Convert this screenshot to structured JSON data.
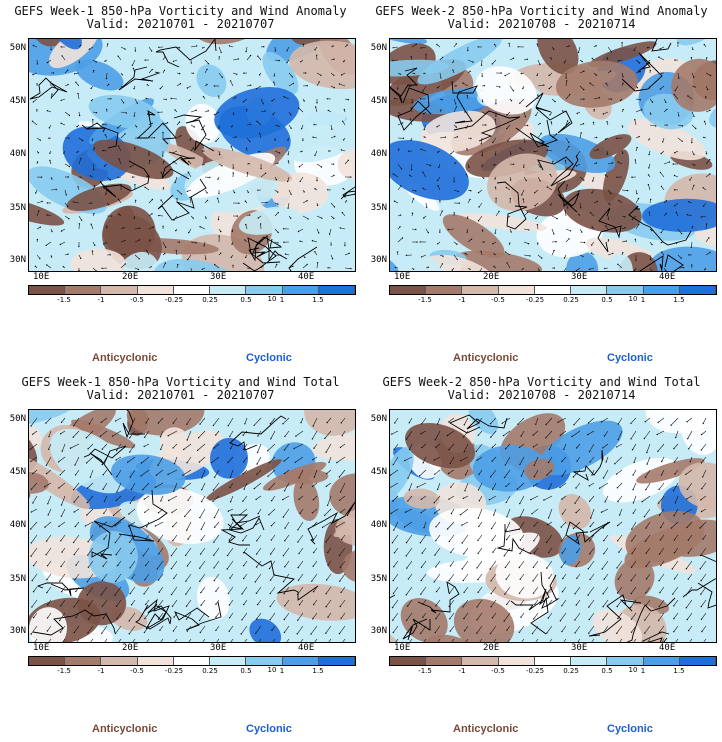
{
  "colors": {
    "anticyclonic_dark": "#7b5246",
    "anticyclonic_mid": "#a47a6a",
    "anticyclonic_light": "#d4b8ab",
    "anticyclonic_pale": "#f1e3dc",
    "neutral": "#ffffff",
    "cyclonic_pale": "#c7ecf7",
    "cyclonic_light": "#87cbee",
    "cyclonic_mid": "#4c9fe6",
    "cyclonic_dark": "#1f6fd9",
    "anticyclonic_text": "#7a4a38",
    "cyclonic_text": "#1a5fd8"
  },
  "panels": [
    {
      "title": "GEFS Week-1 850-hPa Vorticity and Wind Anomaly",
      "valid": "Valid: 20210701 - 20210707",
      "field": "anomaly",
      "week": 1
    },
    {
      "title": "GEFS Week-2 850-hPa Vorticity and Wind Anomaly",
      "valid": "Valid: 20210708 - 20210714",
      "field": "anomaly",
      "week": 2
    },
    {
      "title": "GEFS Week-1 850-hPa Vorticity and Wind Total",
      "valid": "Valid: 20210701 - 20210707",
      "field": "total",
      "week": 1
    },
    {
      "title": "GEFS Week-2 850-hPa Vorticity and Wind Total",
      "valid": "Valid: 20210708 - 20210714",
      "field": "total",
      "week": 2
    }
  ],
  "latitude_labels": [
    "50N",
    "45N",
    "40N",
    "35N",
    "30N"
  ],
  "longitude_labels": [
    "10E",
    "20E",
    "30E",
    "40E"
  ],
  "colorbar_ticks": [
    "-1.5",
    "-1",
    "-0.5",
    "-0.25",
    "0.25",
    "0.5",
    "1",
    "1.5"
  ],
  "colorbar_unit": "10",
  "legend": {
    "anticyclonic": "Anticyclonic",
    "cyclonic": "Cyclonic"
  }
}
